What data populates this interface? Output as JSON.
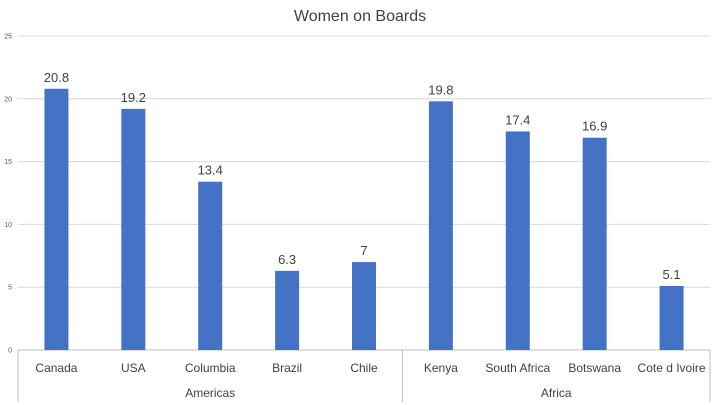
{
  "chart_data": {
    "type": "bar",
    "title": "Women on Boards",
    "xlabel": "",
    "ylabel": "",
    "ylim": [
      0,
      25
    ],
    "yticks": [
      0,
      5,
      10,
      15,
      20,
      25
    ],
    "grid": true,
    "legend": "none",
    "bar_color": "#4472C4",
    "groups": [
      {
        "name": "Americas",
        "categories": [
          "Canada",
          "USA",
          "Columbia",
          "Brazil",
          "Chile"
        ]
      },
      {
        "name": "Africa",
        "categories": [
          "Kenya",
          "South Africa",
          "Botswana",
          "Cote d Ivoire"
        ]
      }
    ],
    "categories": [
      "Canada",
      "USA",
      "Columbia",
      "Brazil",
      "Chile",
      "Kenya",
      "South Africa",
      "Botswana",
      "Cote d Ivoire"
    ],
    "values": [
      20.8,
      19.2,
      13.4,
      6.3,
      7,
      19.8,
      17.4,
      16.9,
      5.1
    ]
  }
}
